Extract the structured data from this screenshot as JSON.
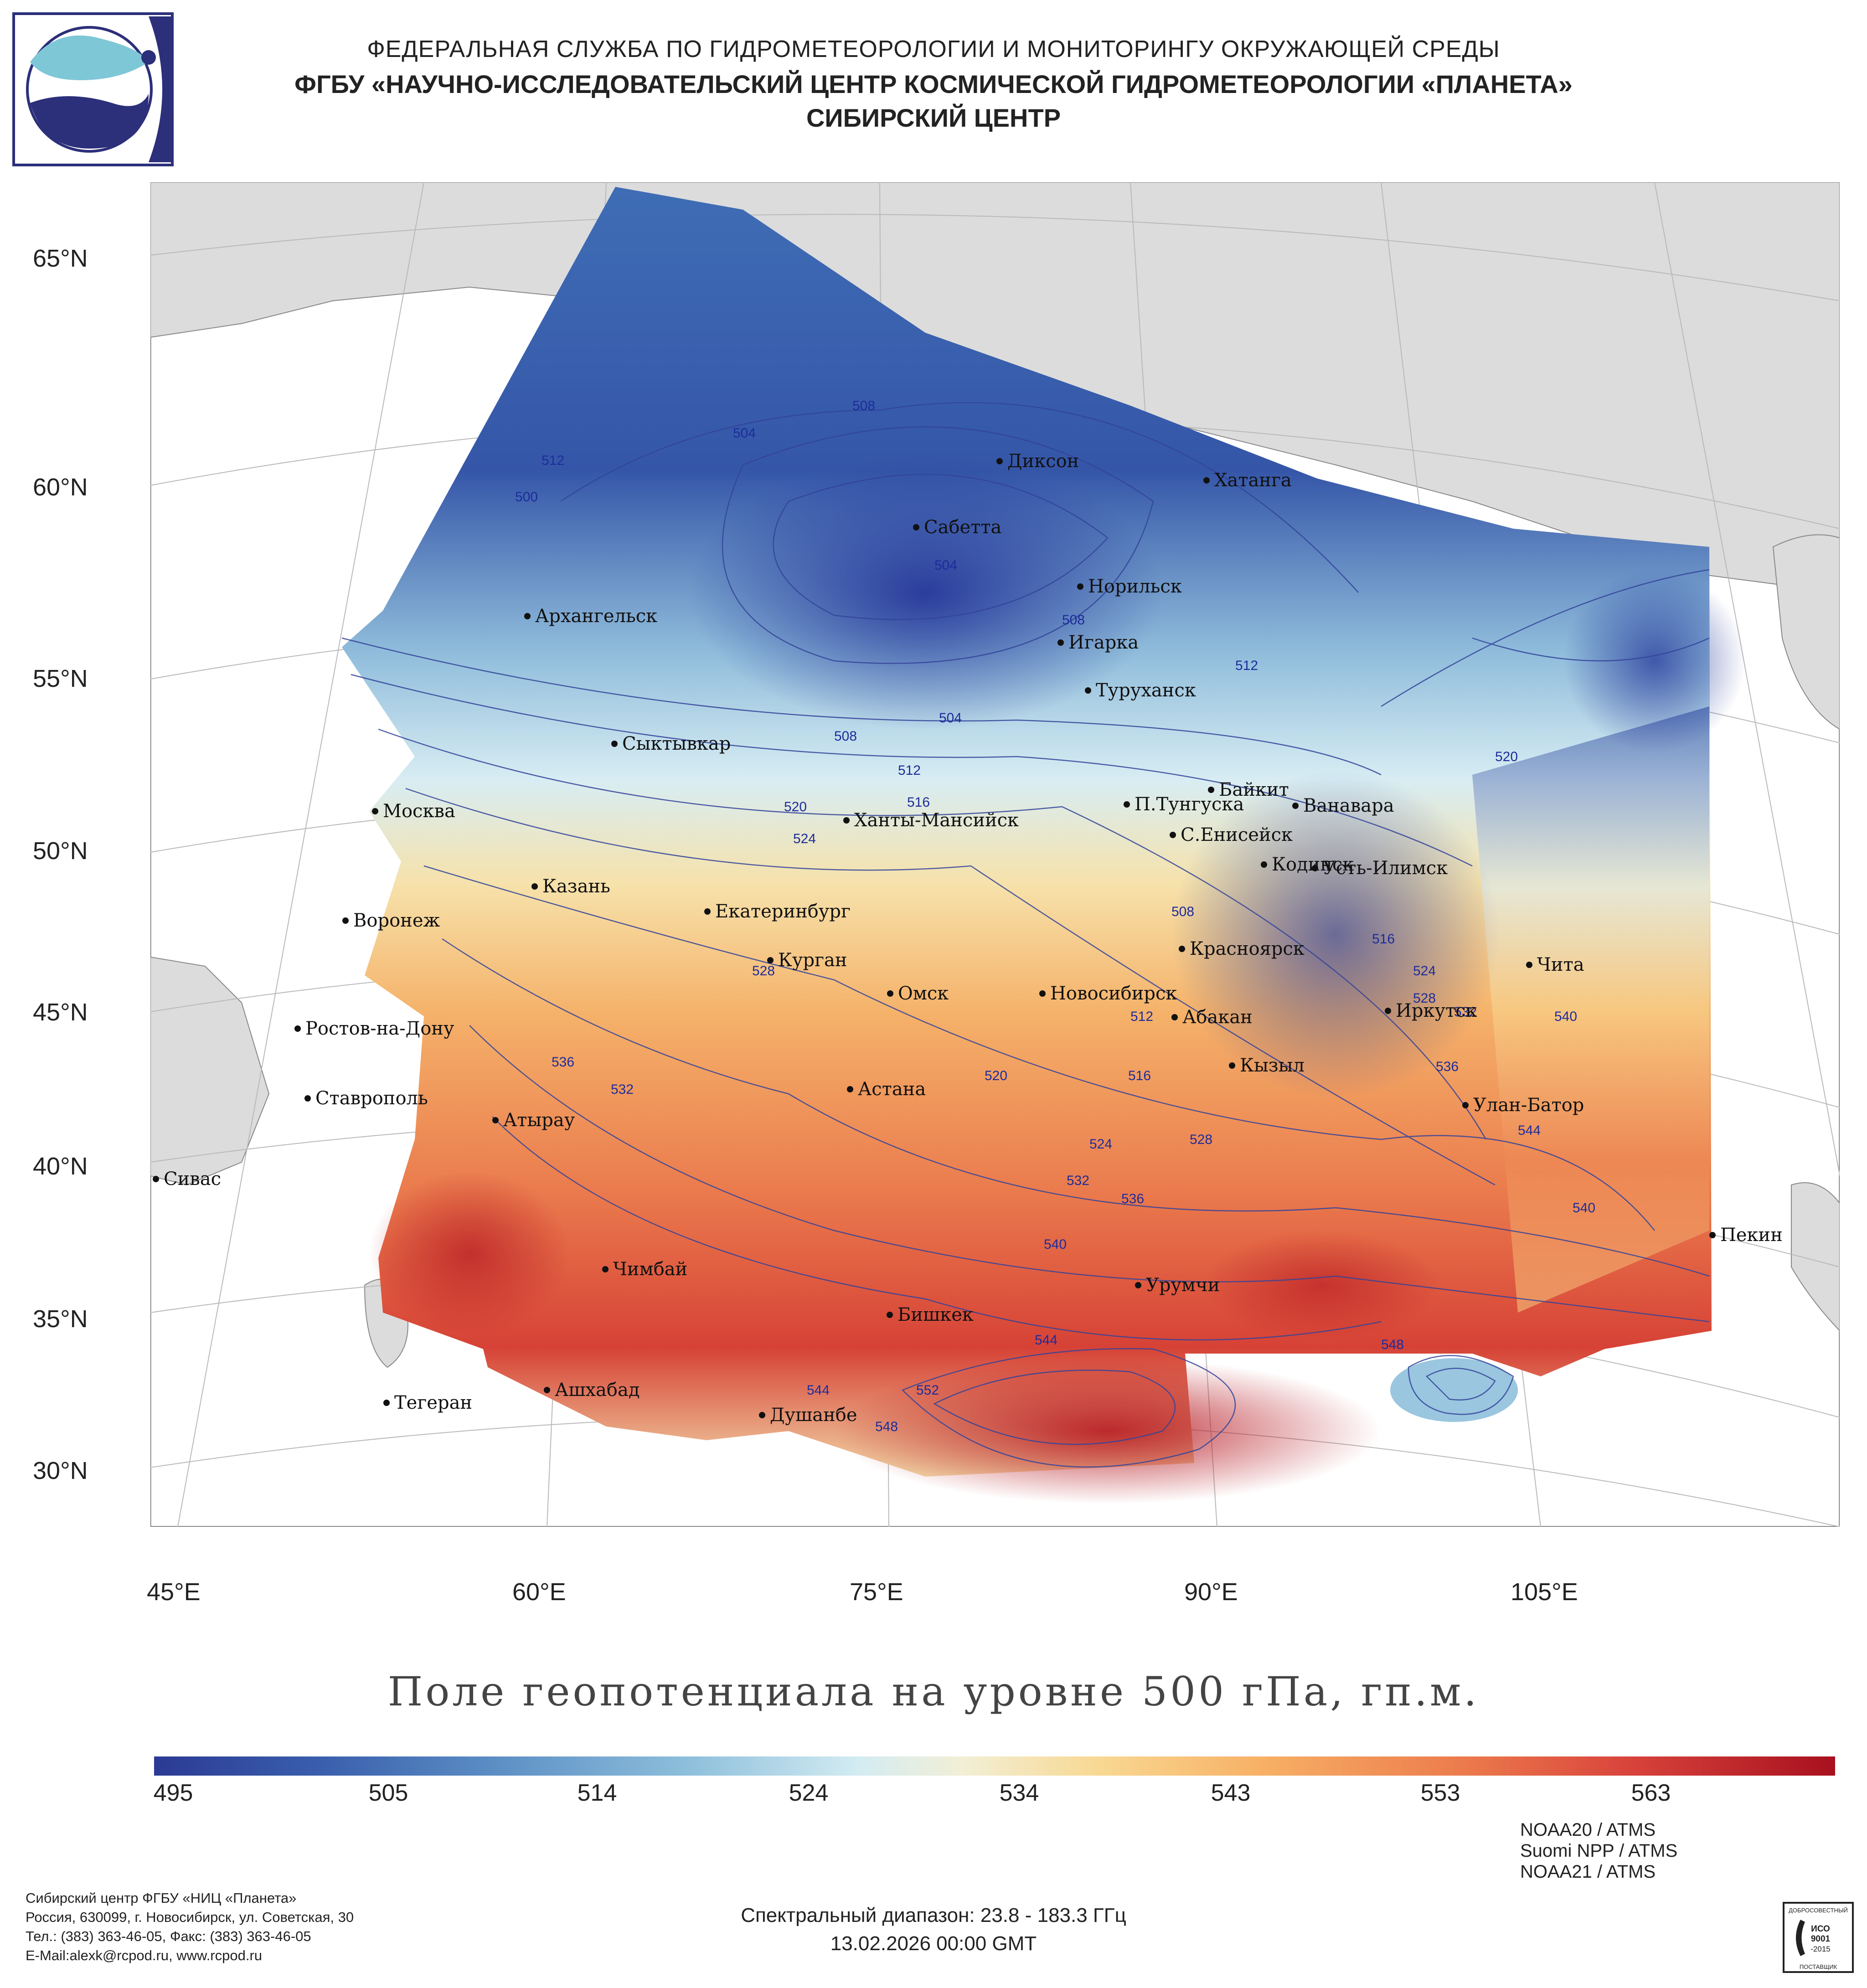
{
  "header": {
    "line1": "ФЕДЕРАЛЬНАЯ СЛУЖБА ПО ГИДРОМЕТЕОРОЛОГИИ И МОНИТОРИНГУ ОКРУЖАЮЩЕЙ СРЕДЫ",
    "line2": "ФГБУ «НАУЧНО-ИССЛЕДОВАТЕЛЬСКИЙ ЦЕНТР КОСМИЧЕСКОЙ ГИДРОМЕТЕОРОЛОГИИ «ПЛАНЕТА»",
    "line3": "СИБИРСКИЙ ЦЕНТР"
  },
  "map": {
    "lat_labels": [
      "65°N",
      "60°N",
      "55°N",
      "50°N",
      "45°N",
      "40°N",
      "35°N",
      "30°N"
    ],
    "lon_labels": [
      "45°E",
      "60°E",
      "75°E",
      "90°E",
      "105°E"
    ],
    "cities": [
      "Диксон",
      "Хатанга",
      "Сабетта",
      "Норильск",
      "Архангельск",
      "Игарка",
      "Туруханск",
      "Сыктывкар",
      "Байкит",
      "Москва",
      "П.Тунгуска",
      "Ванавара",
      "Ханты-Мансийск",
      "С.Енисейск",
      "Казань",
      "Кодинск",
      "Усть-Илимск",
      "Екатеринбург",
      "Воронеж",
      "Красноярск",
      "Курган",
      "Чита",
      "Омск",
      "Новосибирск",
      "Иркутск",
      "Ростов-на-Дону",
      "Абакан",
      "Кызыл",
      "Астана",
      "Ставрополь",
      "Улан-Батор",
      "Атырау",
      "Сивас",
      "Пекин",
      "Чимбай",
      "Урумчи",
      "Бишкек",
      "Ашхабад",
      "Тегеран",
      "Душанбе"
    ],
    "contour_labels": [
      "512",
      "504",
      "508",
      "500",
      "504",
      "508",
      "512",
      "504",
      "508",
      "512",
      "516",
      "520",
      "524",
      "520",
      "508",
      "516",
      "524",
      "528",
      "528",
      "536",
      "532",
      "512",
      "516",
      "520",
      "524",
      "528",
      "532",
      "536",
      "540",
      "544",
      "548",
      "552",
      "544",
      "548",
      "536",
      "540",
      "544",
      "532",
      "540"
    ]
  },
  "title": "Поле геопотенциала на уровне 500 гПа, гп.м.",
  "colorbar": {
    "ticks": [
      "495",
      "505",
      "514",
      "524",
      "534",
      "543",
      "553",
      "563"
    ]
  },
  "footer": {
    "org": "Сибирский центр ФГБУ «НИЦ «Планета»",
    "address": "Россия, 630099, г. Новосибирск, ул. Советская, 30",
    "phone": "Тел.: (383) 363-46-05, Факс: (383) 363-46-05",
    "email": "E-Mail:alexk@rcpod.ru, www.rcpod.ru",
    "spectral": "Спектральный диапазон: 23.8 - 183.3 ГГц",
    "datetime": "13.02.2026 00:00 GMT",
    "sat1": "NOAA20 / ATMS",
    "sat2": "Suomi NPP / ATMS",
    "sat3": "NOAA21 / ATMS",
    "iso_top": "ДОБРОСОВЕСТНЫЙ",
    "iso_mid1": "ИСО",
    "iso_mid2": "9001",
    "iso_mid3": "-2015",
    "iso_bottom": "ПОСТАВЩИК"
  }
}
